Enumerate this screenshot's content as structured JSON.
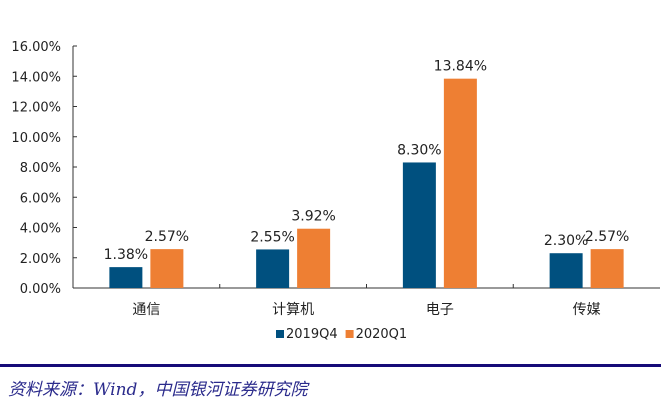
{
  "chart_data": {
    "type": "bar",
    "title": "",
    "xlabel": "",
    "ylabel": "",
    "categories": [
      "通信",
      "计算机",
      "电子",
      "传媒"
    ],
    "series": [
      {
        "name": "2019Q4",
        "values": [
          1.38,
          2.55,
          8.3,
          2.3
        ],
        "labels": [
          "1.38%",
          "2.55%",
          "8.30%",
          "2.30%"
        ],
        "color": "#00507f"
      },
      {
        "name": "2020Q1",
        "values": [
          2.57,
          3.92,
          13.84,
          2.57
        ],
        "labels": [
          "2.57%",
          "3.92%",
          "13.84%",
          "2.57%"
        ],
        "color": "#ee7f33"
      }
    ],
    "ylim": [
      0,
      16
    ],
    "yticks": [
      0,
      2,
      4,
      6,
      8,
      10,
      12,
      14,
      16
    ],
    "ytick_labels": [
      "0.00%",
      "2.00%",
      "4.00%",
      "6.00%",
      "8.00%",
      "10.00%",
      "12.00%",
      "14.00%",
      "16.00%"
    ],
    "grid": false,
    "legend_position": "bottom"
  },
  "footer": {
    "source": "资料来源：Wind，中国银河证券研究院",
    "rule_color": "#160a78"
  }
}
